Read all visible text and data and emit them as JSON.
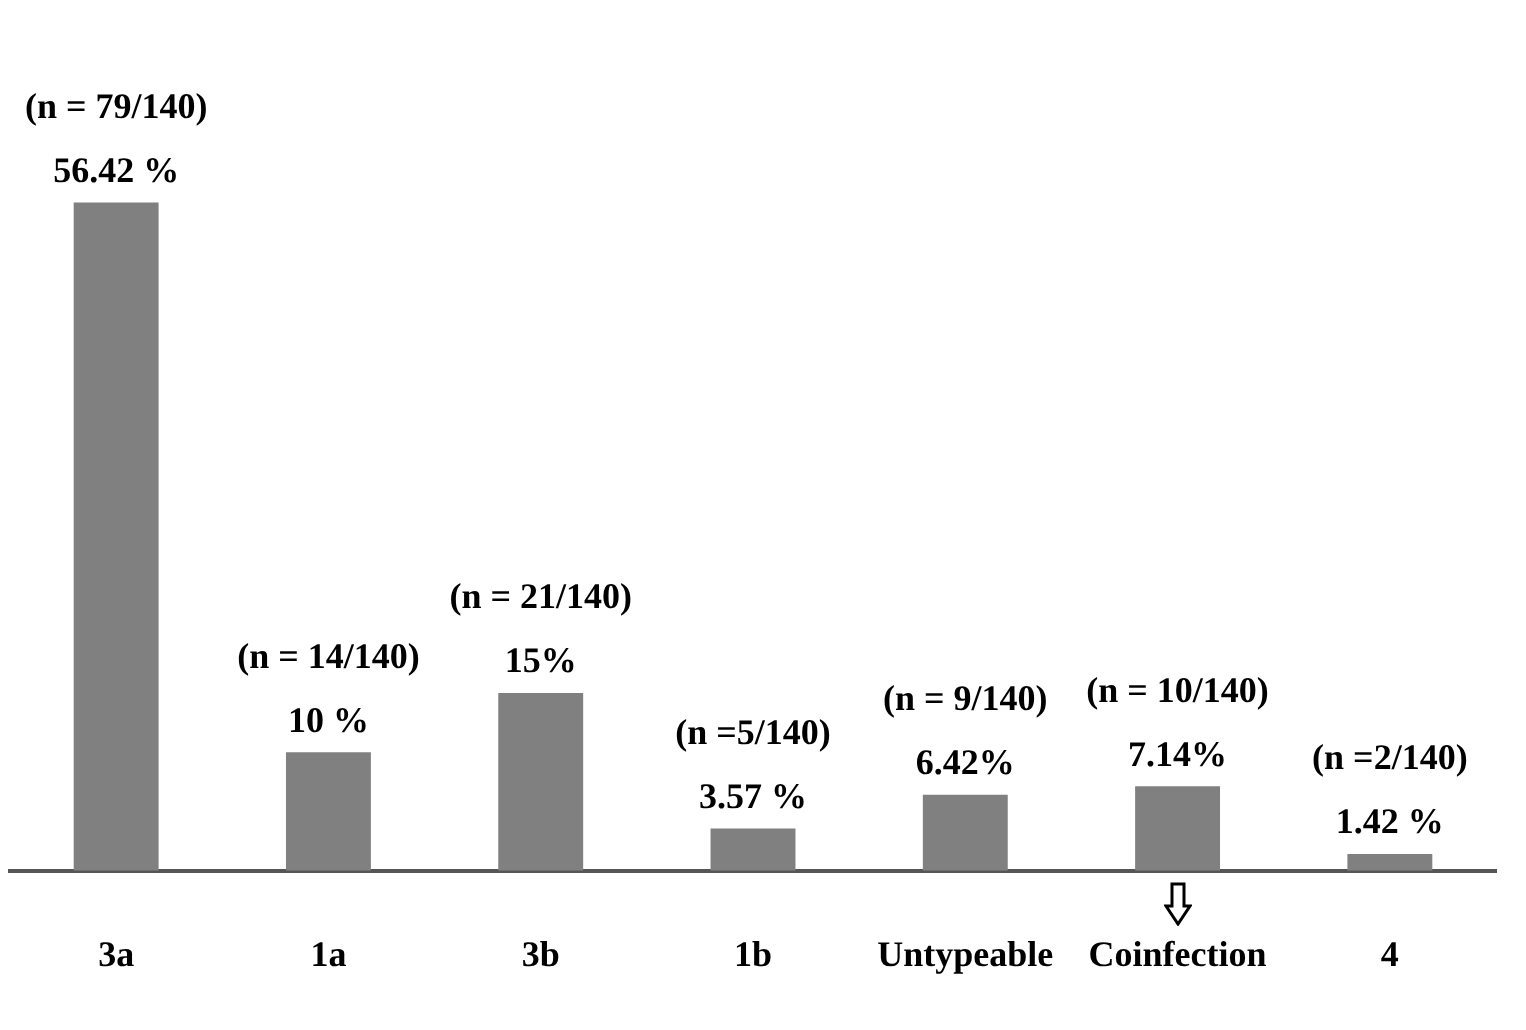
{
  "chart_data": {
    "type": "bar",
    "categories": [
      "3a",
      "1a",
      "3b",
      "1b",
      "Untypeable",
      "Coinfection",
      "4"
    ],
    "values": [
      56.42,
      10,
      15,
      3.57,
      6.42,
      7.14,
      1.42
    ],
    "color": "#808080",
    "value_labels": [
      "56.42 %",
      "10 %",
      "15%",
      "3.57 %",
      "6.42%",
      "7.14%",
      "1.42 %"
    ],
    "annotations": [
      {
        "text": "(n = 79/140)",
        "x": "3a",
        "y": 56.42
      },
      {
        "text": "(n = 14/140)",
        "x": "1a",
        "y": 10
      },
      {
        "text": "(n = 21/140)",
        "x": "3b",
        "y": 15
      },
      {
        "text": "(n =5/140)",
        "x": "1b",
        "y": 3.57
      },
      {
        "text": "(n = 9/140)",
        "x": "Untypeable",
        "y": 6.42
      },
      {
        "text": "(n = 10/140)",
        "x": "Coinfection",
        "y": 7.14
      },
      {
        "text": "(n =2/140)",
        "x": "4",
        "y": 1.42
      }
    ],
    "grid": false,
    "legend": false,
    "tick_labels": "x"
  }
}
